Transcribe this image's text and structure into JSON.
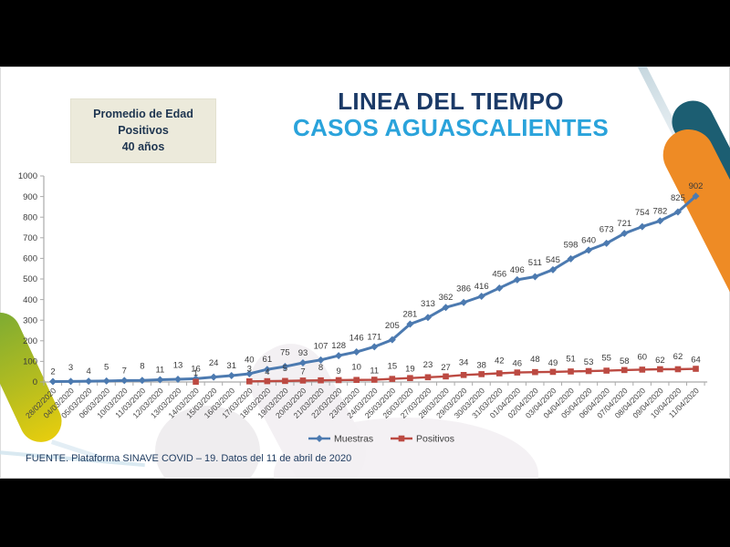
{
  "info_box": {
    "lines": [
      "Promedio de Edad",
      "Positivos",
      "40 años"
    ]
  },
  "title": {
    "line1": "LINEA DEL TIEMPO",
    "line2": "CASOS AGUASCALIENTES"
  },
  "footer": {
    "text": "FUENTE. Plataforma SINAVE COVID – 19. Datos del 11 de abril de 2020"
  },
  "colors": {
    "title_navy": "#1b3a67",
    "title_blue": "#2aa3db",
    "info_box_bg": "#eceadb",
    "muestras_line": "#4c7ab0",
    "positivos_line": "#bc4a42",
    "ribbon_teal": "#1c5e72",
    "ribbon_orange": "#ee8b25",
    "ribbon_green": "#7cab33",
    "ribbon_yellow": "#e6cd0e",
    "axis": "#ababab",
    "label_text": "#3a3a3a"
  },
  "chart_data": {
    "type": "line",
    "title": "",
    "xlabel": "",
    "ylabel": "",
    "ylim": [
      0,
      1000
    ],
    "ytick_step": 100,
    "grid": false,
    "legend_position": "bottom-center",
    "categories": [
      "28/02/2020",
      "04/03/2020",
      "05/03/2020",
      "06/03/2020",
      "10/03/2020",
      "11/03/2020",
      "12/03/2020",
      "13/03/2020",
      "14/03/2020",
      "15/03/2020",
      "16/03/2020",
      "17/03/2020",
      "18/03/2020",
      "19/03/2020",
      "20/03/2020",
      "21/03/2020",
      "22/03/2020",
      "23/03/2020",
      "24/03/2020",
      "25/03/2020",
      "26/03/2020",
      "27/03/2020",
      "28/03/2020",
      "29/03/2020",
      "30/03/2020",
      "31/03/2020",
      "01/04/2020",
      "02/04/2020",
      "03/04/2020",
      "04/04/2020",
      "05/04/2020",
      "06/04/2020",
      "07/04/2020",
      "08/04/2020",
      "09/04/2020",
      "10/04/2020",
      "11/04/2020"
    ],
    "series": [
      {
        "name": "Muestras",
        "marker": "diamond",
        "color": "#4c7ab0",
        "values": [
          2,
          3,
          4,
          5,
          7,
          8,
          11,
          13,
          16,
          24,
          31,
          40,
          61,
          75,
          93,
          107,
          128,
          146,
          171,
          205,
          281,
          313,
          362,
          386,
          416,
          456,
          496,
          511,
          545,
          598,
          640,
          673,
          721,
          754,
          782,
          825,
          902
        ]
      },
      {
        "name": "Positivos",
        "marker": "square",
        "color": "#bc4a42",
        "values": [
          null,
          null,
          null,
          null,
          null,
          null,
          null,
          null,
          1,
          null,
          null,
          3,
          4,
          5,
          7,
          8,
          9,
          10,
          11,
          15,
          19,
          23,
          27,
          34,
          38,
          42,
          46,
          48,
          49,
          51,
          53,
          55,
          58,
          60,
          62,
          62,
          64
        ]
      }
    ]
  }
}
